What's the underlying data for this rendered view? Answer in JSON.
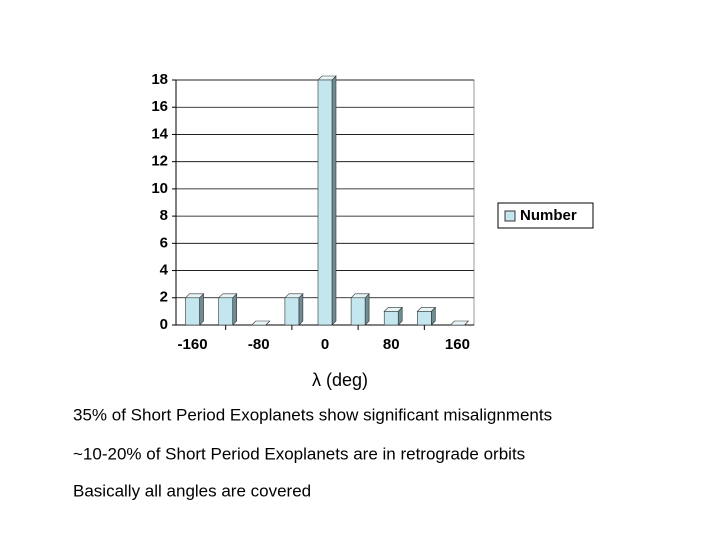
{
  "chart_data": {
    "type": "bar",
    "xlabel": "λ (deg)",
    "categories": [
      "-160",
      null,
      "-80",
      null,
      "0",
      null,
      "80",
      null,
      "160"
    ],
    "series": [
      {
        "name": "Number",
        "color": "#c4e6ee",
        "values": [
          2,
          2,
          0,
          2,
          18,
          2,
          1,
          1,
          0
        ]
      }
    ],
    "ylim": [
      0,
      18
    ],
    "yticks": [
      0,
      2,
      4,
      6,
      8,
      10,
      12,
      14,
      16,
      18
    ],
    "grid": true,
    "legend": "right"
  },
  "notes": [
    "35% of Short Period Exoplanets show significant misalignments",
    "~10-20% of Short Period Exoplanets are in retrograde orbits",
    "Basically all angles are covered"
  ]
}
